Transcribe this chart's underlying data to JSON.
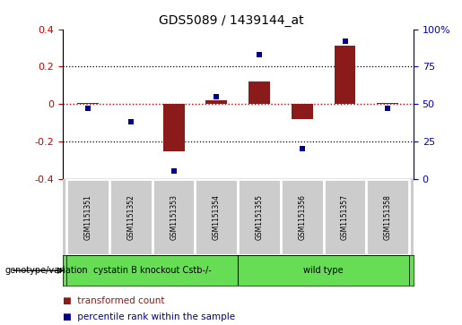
{
  "title": "GDS5089 / 1439144_at",
  "samples": [
    "GSM1151351",
    "GSM1151352",
    "GSM1151353",
    "GSM1151354",
    "GSM1151355",
    "GSM1151356",
    "GSM1151357",
    "GSM1151358"
  ],
  "transformed_count": [
    0.005,
    0.0,
    -0.255,
    0.02,
    0.12,
    -0.08,
    0.31,
    0.005
  ],
  "percentile_rank": [
    47,
    38,
    5,
    55,
    83,
    20,
    92,
    47
  ],
  "bar_color": "#8B1A1A",
  "scatter_color": "#00008B",
  "ylim_left": [
    -0.4,
    0.4
  ],
  "ylim_right": [
    0,
    100
  ],
  "yticks_left": [
    -0.4,
    -0.2,
    0.0,
    0.2,
    0.4
  ],
  "yticks_right": [
    0,
    25,
    50,
    75,
    100
  ],
  "ytick_labels_right": [
    "0",
    "25",
    "50",
    "75",
    "100%"
  ],
  "ytick_labels_left": [
    "-0.4",
    "-0.2",
    "0",
    "0.2",
    "0.4"
  ],
  "hline_color": "#CC0000",
  "dotted_color": "#000000",
  "group1_label": "cystatin B knockout Cstb-/-",
  "group2_label": "wild type",
  "group1_count": 4,
  "group2_count": 4,
  "group_bg_color": "#66DD55",
  "genotype_label": "genotype/variation",
  "legend_bar_label": "transformed count",
  "legend_scatter_label": "percentile rank within the sample",
  "background_color": "#FFFFFF",
  "plot_bg_color": "#FFFFFF",
  "tick_label_color_left": "#CC0000",
  "tick_label_color_right": "#0000CC",
  "bar_width": 0.5,
  "cell_bg_color": "#CCCCCC",
  "cell_border_color": "#FFFFFF"
}
